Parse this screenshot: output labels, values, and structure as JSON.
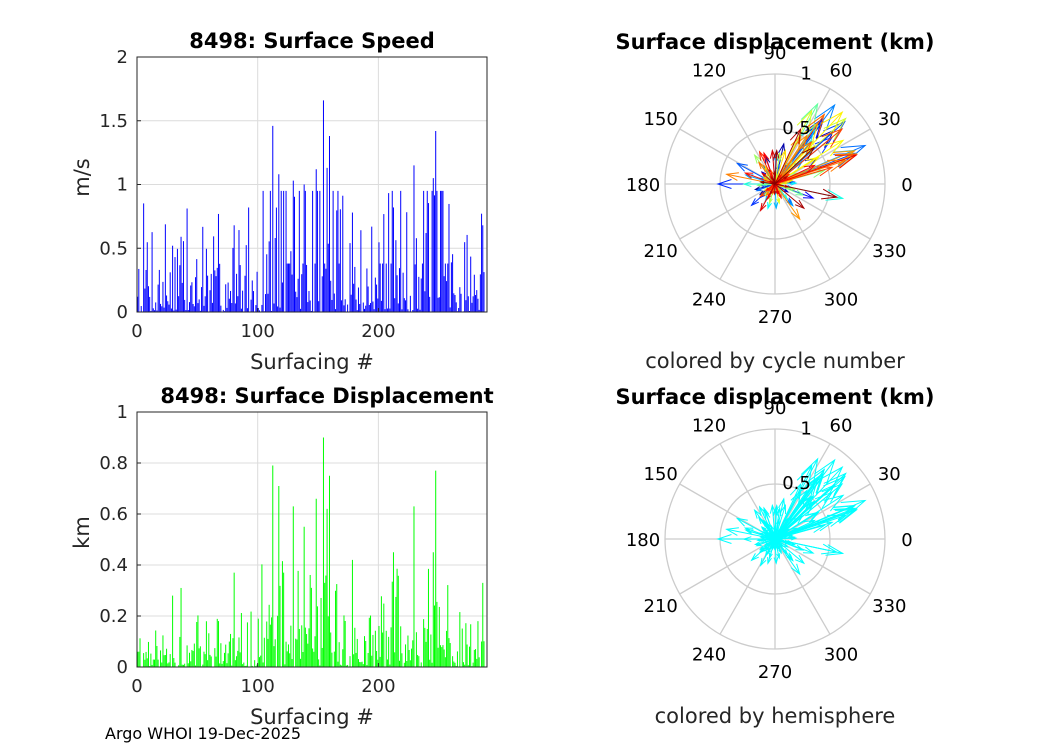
{
  "footer": "Argo WHOI 19-Dec-2025",
  "colors": {
    "speed": "#0000ff",
    "displacement": "#00ff00",
    "hemisphere": "#00ffff",
    "grid": "#dcdcdc",
    "axis": "#262626"
  },
  "chart_data": [
    {
      "id": "speed",
      "type": "bar",
      "title": "8498: Surface Speed",
      "xlabel": "Surfacing #",
      "ylabel": "m/s",
      "xlim": [
        0,
        290
      ],
      "ylim": [
        0,
        2
      ],
      "xticks": [
        "0",
        "100",
        "200"
      ],
      "xtick_values": [
        0,
        100,
        200
      ],
      "yticks": [
        "0",
        "0.5",
        "1",
        "1.5",
        "2"
      ],
      "ytick_values": [
        0,
        0.5,
        1,
        1.5,
        2
      ],
      "grid": true,
      "peaks": [
        {
          "x": 30,
          "y": 0.52
        },
        {
          "x": 37,
          "y": 0.59
        },
        {
          "x": 81,
          "y": 0.68
        },
        {
          "x": 113,
          "y": 1.46
        },
        {
          "x": 118,
          "y": 1.08
        },
        {
          "x": 130,
          "y": 1.03
        },
        {
          "x": 139,
          "y": 1.0
        },
        {
          "x": 149,
          "y": 1.12
        },
        {
          "x": 155,
          "y": 1.66
        },
        {
          "x": 158,
          "y": 1.13
        },
        {
          "x": 160,
          "y": 1.38
        },
        {
          "x": 179,
          "y": 0.78
        },
        {
          "x": 213,
          "y": 0.82
        },
        {
          "x": 230,
          "y": 1.15
        },
        {
          "x": 246,
          "y": 1.05
        },
        {
          "x": 248,
          "y": 1.42
        },
        {
          "x": 287,
          "y": 0.68
        }
      ]
    },
    {
      "id": "displacement",
      "type": "bar",
      "title": "8498: Surface Displacement",
      "xlabel": "Surfacing #",
      "ylabel": "km",
      "xlim": [
        0,
        290
      ],
      "ylim": [
        0,
        1
      ],
      "xticks": [
        "0",
        "100",
        "200"
      ],
      "xtick_values": [
        0,
        100,
        200
      ],
      "yticks": [
        "0",
        "0.2",
        "0.4",
        "0.6",
        "0.8",
        "1"
      ],
      "ytick_values": [
        0,
        0.2,
        0.4,
        0.6,
        0.8,
        1
      ],
      "grid": true,
      "peaks": [
        {
          "x": 30,
          "y": 0.28
        },
        {
          "x": 37,
          "y": 0.31
        },
        {
          "x": 81,
          "y": 0.37
        },
        {
          "x": 113,
          "y": 0.79
        },
        {
          "x": 118,
          "y": 0.71
        },
        {
          "x": 130,
          "y": 0.63
        },
        {
          "x": 139,
          "y": 0.55
        },
        {
          "x": 149,
          "y": 0.66
        },
        {
          "x": 155,
          "y": 0.9
        },
        {
          "x": 158,
          "y": 0.62
        },
        {
          "x": 160,
          "y": 0.75
        },
        {
          "x": 179,
          "y": 0.42
        },
        {
          "x": 213,
          "y": 0.45
        },
        {
          "x": 230,
          "y": 0.63
        },
        {
          "x": 246,
          "y": 0.45
        },
        {
          "x": 248,
          "y": 0.77
        },
        {
          "x": 287,
          "y": 0.33
        }
      ]
    },
    {
      "id": "compass-cycle",
      "type": "compass",
      "title": "Surface displacement (km)",
      "caption": "colored by cycle number",
      "rlim": [
        0,
        1
      ],
      "rticks": [
        "0.5",
        "1"
      ],
      "rtick_values": [
        0.5,
        1
      ],
      "angle_labels": [
        "0",
        "30",
        "60",
        "90",
        "120",
        "150",
        "180",
        "210",
        "240",
        "270",
        "300",
        "330"
      ],
      "coloring": "cycle-number (jet colormap)"
    },
    {
      "id": "compass-hemisphere",
      "type": "compass",
      "title": "Surface displacement (km)",
      "caption": "colored by hemisphere",
      "rlim": [
        0,
        1
      ],
      "rticks": [
        "0.5",
        "1"
      ],
      "rtick_values": [
        0.5,
        1
      ],
      "angle_labels": [
        "0",
        "30",
        "60",
        "90",
        "120",
        "150",
        "180",
        "210",
        "240",
        "270",
        "300",
        "330"
      ],
      "coloring": "hemisphere (single color)"
    }
  ]
}
